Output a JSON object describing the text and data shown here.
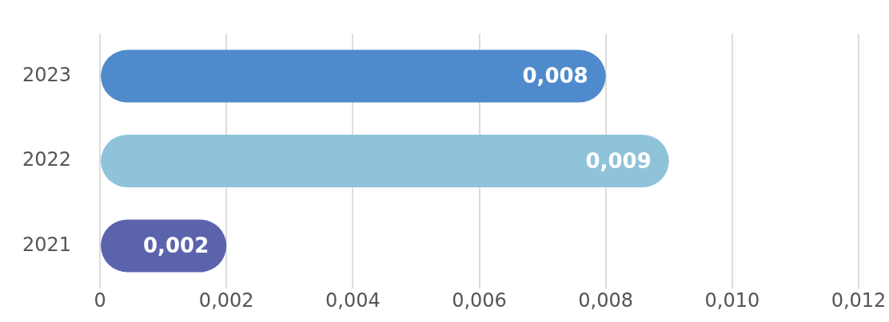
{
  "chart_data": {
    "type": "bar",
    "orientation": "horizontal",
    "categories": [
      "2023",
      "2022",
      "2021"
    ],
    "values": [
      0.008,
      0.009,
      0.002
    ],
    "colors": [
      "#4f8bcc",
      "#8fc3d9",
      "#5b63ad"
    ],
    "value_labels": [
      "0,008",
      "0,009",
      "0,002"
    ],
    "xlim": [
      0,
      0.012
    ],
    "xticks": [
      0,
      {
        "value": 0.002,
        "label": "0,002"
      },
      {
        "value": 0.004,
        "label": "0,004"
      },
      {
        "value": 0.006,
        "label": "0,006"
      },
      {
        "value": 0.008,
        "label": "0,008"
      },
      {
        "value": 0.01,
        "label": "0,010"
      },
      {
        "value": 0.012,
        "label": "0,012"
      }
    ],
    "grid": "x",
    "legend": false
  }
}
